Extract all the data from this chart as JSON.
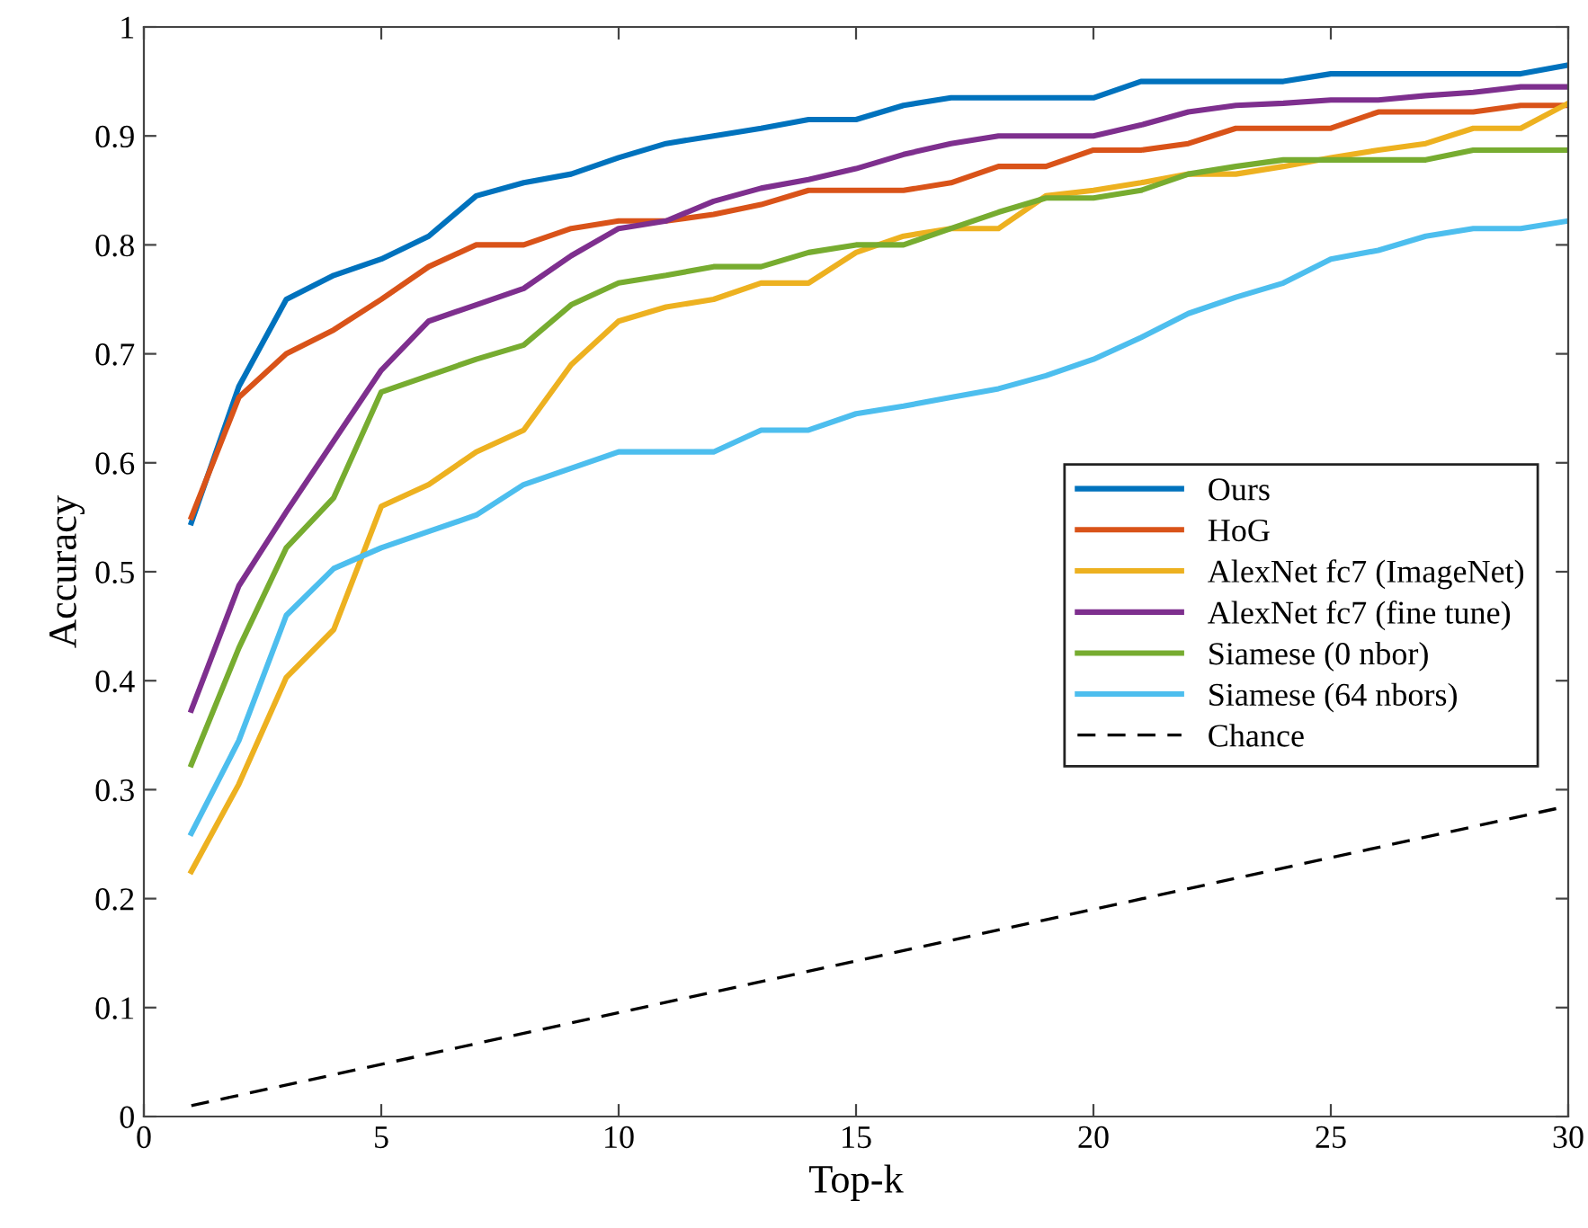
{
  "chart_data": {
    "type": "line",
    "xlabel": "Top-k",
    "ylabel": "Accuracy",
    "x": [
      1,
      2,
      3,
      4,
      5,
      6,
      7,
      8,
      9,
      10,
      11,
      12,
      13,
      14,
      15,
      16,
      17,
      18,
      19,
      20,
      21,
      22,
      23,
      24,
      25,
      26,
      27,
      28,
      29,
      30
    ],
    "xlim": [
      0,
      30
    ],
    "xticks": [
      0,
      5,
      10,
      15,
      20,
      25,
      30
    ],
    "ylim": [
      0,
      1
    ],
    "yticks": [
      0,
      0.1,
      0.2,
      0.3,
      0.4,
      0.5,
      0.6,
      0.7,
      0.8,
      0.9,
      1
    ],
    "grid": false,
    "legend": "right",
    "marker": "none",
    "series": [
      {
        "name": "Ours",
        "color": "#0072bd",
        "values": [
          0.545,
          0.67,
          0.75,
          0.772,
          0.787,
          0.808,
          0.845,
          0.857,
          0.865,
          0.88,
          0.893,
          0.9,
          0.907,
          0.915,
          0.915,
          0.928,
          0.935,
          0.935,
          0.935,
          0.935,
          0.95,
          0.95,
          0.95,
          0.95,
          0.957,
          0.957,
          0.957,
          0.957,
          0.957,
          0.965
        ]
      },
      {
        "name": "HoG",
        "color": "#d95319",
        "values": [
          0.55,
          0.66,
          0.7,
          0.722,
          0.75,
          0.78,
          0.8,
          0.8,
          0.815,
          0.822,
          0.822,
          0.828,
          0.837,
          0.85,
          0.85,
          0.85,
          0.857,
          0.872,
          0.872,
          0.887,
          0.887,
          0.893,
          0.907,
          0.907,
          0.907,
          0.922,
          0.922,
          0.922,
          0.928,
          0.928
        ]
      },
      {
        "name": "AlexNet fc7 (ImageNet)",
        "color": "#edb120",
        "values": [
          0.225,
          0.305,
          0.403,
          0.447,
          0.56,
          0.58,
          0.61,
          0.63,
          0.69,
          0.73,
          0.743,
          0.75,
          0.765,
          0.765,
          0.793,
          0.808,
          0.815,
          0.815,
          0.845,
          0.85,
          0.857,
          0.865,
          0.865,
          0.872,
          0.88,
          0.887,
          0.893,
          0.907,
          0.907,
          0.93
        ]
      },
      {
        "name": "AlexNet fc7 (fine tune)",
        "color": "#7e2f8e",
        "values": [
          0.373,
          0.487,
          0.555,
          0.62,
          0.685,
          0.73,
          0.745,
          0.76,
          0.79,
          0.815,
          0.822,
          0.84,
          0.852,
          0.86,
          0.87,
          0.883,
          0.893,
          0.9,
          0.9,
          0.9,
          0.91,
          0.922,
          0.928,
          0.93,
          0.933,
          0.933,
          0.937,
          0.94,
          0.945,
          0.945
        ]
      },
      {
        "name": "Siamese (0 nbor)",
        "color": "#77ac30",
        "values": [
          0.323,
          0.43,
          0.522,
          0.568,
          0.665,
          0.68,
          0.695,
          0.708,
          0.745,
          0.765,
          0.772,
          0.78,
          0.78,
          0.793,
          0.8,
          0.8,
          0.815,
          0.83,
          0.843,
          0.843,
          0.85,
          0.865,
          0.872,
          0.878,
          0.878,
          0.878,
          0.878,
          0.887,
          0.887,
          0.887
        ]
      },
      {
        "name": "Siamese (64 nbors)",
        "color": "#4dbeee",
        "values": [
          0.26,
          0.345,
          0.46,
          0.503,
          0.522,
          0.537,
          0.552,
          0.58,
          0.595,
          0.61,
          0.61,
          0.61,
          0.63,
          0.63,
          0.645,
          0.652,
          0.66,
          0.668,
          0.68,
          0.695,
          0.715,
          0.737,
          0.752,
          0.765,
          0.787,
          0.795,
          0.808,
          0.815,
          0.815,
          0.822
        ]
      },
      {
        "name": "Chance",
        "color": "#000000",
        "line_style": "dashed",
        "x": [
          1,
          30
        ],
        "values": [
          0.01,
          0.285
        ]
      }
    ]
  }
}
